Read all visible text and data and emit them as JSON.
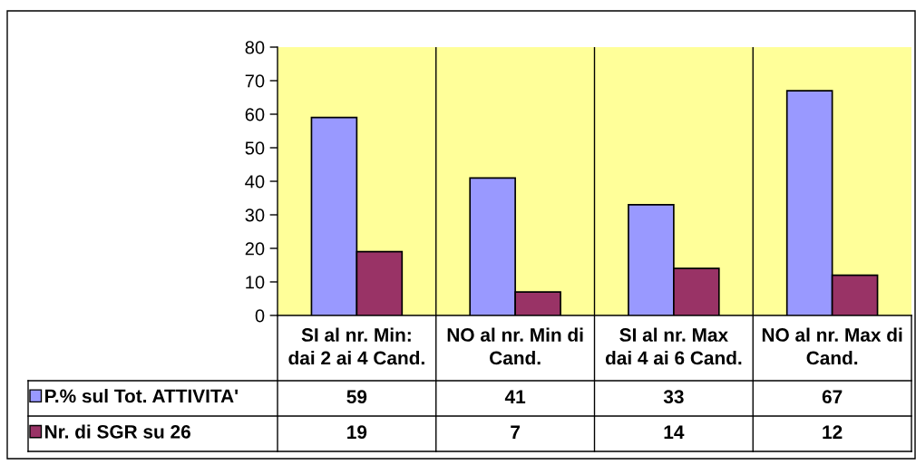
{
  "chart_data": {
    "type": "bar",
    "categories": [
      "SI al nr. Min:\ndai 2 ai 4 Cand.",
      "NO al nr. Min di\nCand.",
      "SI al nr. Max\ndai 4 ai 6 Cand.",
      "NO al nr. Max di\nCand."
    ],
    "series": [
      {
        "name": "P.% sul Tot. ATTIVITA'",
        "color": "#9999ff",
        "values": [
          59,
          41,
          33,
          67
        ]
      },
      {
        "name": "Nr. di SGR su 26",
        "color": "#993366",
        "values": [
          19,
          7,
          14,
          12
        ]
      }
    ],
    "ylim": [
      0,
      80
    ],
    "yticks": [
      0,
      10,
      20,
      30,
      40,
      50,
      60,
      70,
      80
    ],
    "grid": "x",
    "legend": "bottom left",
    "data_labels": true
  }
}
